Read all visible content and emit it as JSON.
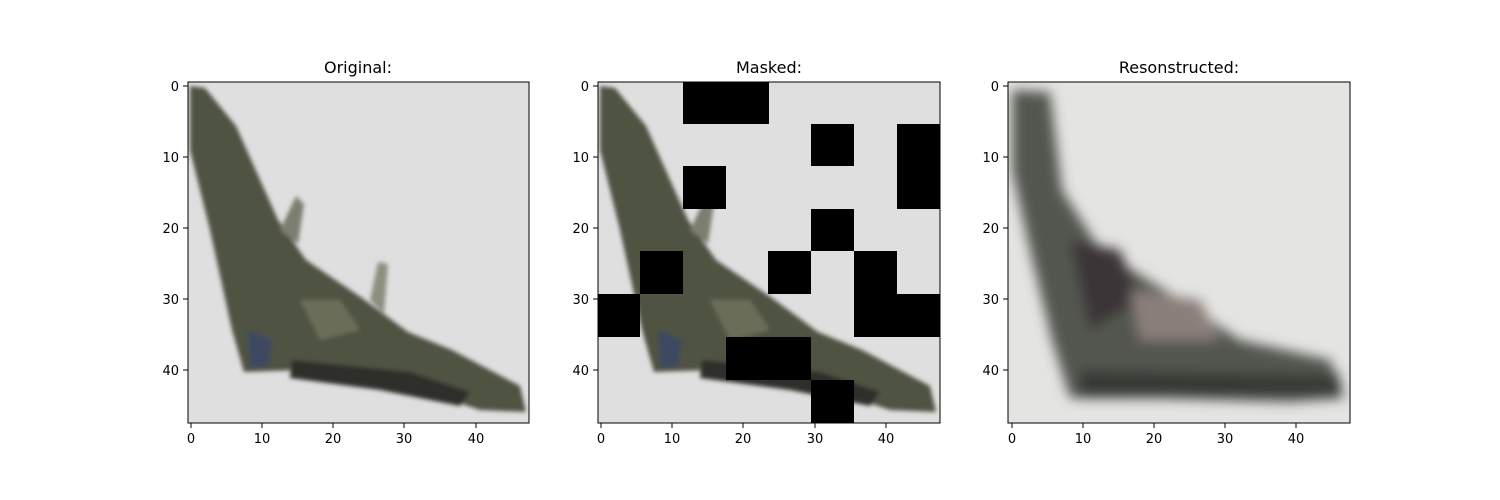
{
  "figure": {
    "panels": [
      {
        "id": "original",
        "title": "Original:",
        "x_ticks": [
          "0",
          "10",
          "20",
          "30",
          "40"
        ],
        "y_ticks": [
          "0",
          "10",
          "20",
          "30",
          "40"
        ]
      },
      {
        "id": "masked",
        "title": "Masked:",
        "x_ticks": [
          "0",
          "10",
          "20",
          "30",
          "40"
        ],
        "y_ticks": [
          "0",
          "10",
          "20",
          "30",
          "40"
        ]
      },
      {
        "id": "reconstructed",
        "title": "Resonstructed:",
        "x_ticks": [
          "0",
          "10",
          "20",
          "30",
          "40"
        ],
        "y_ticks": [
          "0",
          "10",
          "20",
          "30",
          "40"
        ]
      }
    ]
  }
}
